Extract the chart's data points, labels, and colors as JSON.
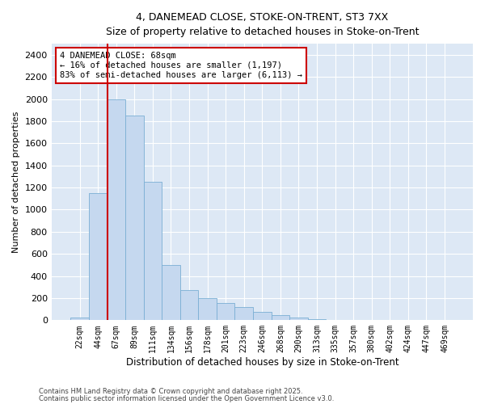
{
  "title1": "4, DANEMEAD CLOSE, STOKE-ON-TRENT, ST3 7XX",
  "title2": "Size of property relative to detached houses in Stoke-on-Trent",
  "xlabel": "Distribution of detached houses by size in Stoke-on-Trent",
  "ylabel": "Number of detached properties",
  "categories": [
    "22sqm",
    "44sqm",
    "67sqm",
    "89sqm",
    "111sqm",
    "134sqm",
    "156sqm",
    "178sqm",
    "201sqm",
    "223sqm",
    "246sqm",
    "268sqm",
    "290sqm",
    "313sqm",
    "335sqm",
    "357sqm",
    "380sqm",
    "402sqm",
    "424sqm",
    "447sqm",
    "469sqm"
  ],
  "values": [
    25,
    1150,
    2000,
    1850,
    1250,
    500,
    270,
    200,
    155,
    120,
    75,
    45,
    25,
    8,
    5,
    3,
    3,
    2,
    1,
    1,
    1
  ],
  "bar_color": "#c5d8ef",
  "bar_edgecolor": "#7aafd4",
  "vline_color": "#cc0000",
  "background_color": "#dde8f5",
  "annotation_text": "4 DANEMEAD CLOSE: 68sqm\n← 16% of detached houses are smaller (1,197)\n83% of semi-detached houses are larger (6,113) →",
  "annotation_box_color": "#ffffff",
  "annotation_box_edgecolor": "#cc0000",
  "ylim": [
    0,
    2500
  ],
  "yticks": [
    0,
    200,
    400,
    600,
    800,
    1000,
    1200,
    1400,
    1600,
    1800,
    2000,
    2200,
    2400
  ],
  "footer1": "Contains HM Land Registry data © Crown copyright and database right 2025.",
  "footer2": "Contains public sector information licensed under the Open Government Licence v3.0."
}
